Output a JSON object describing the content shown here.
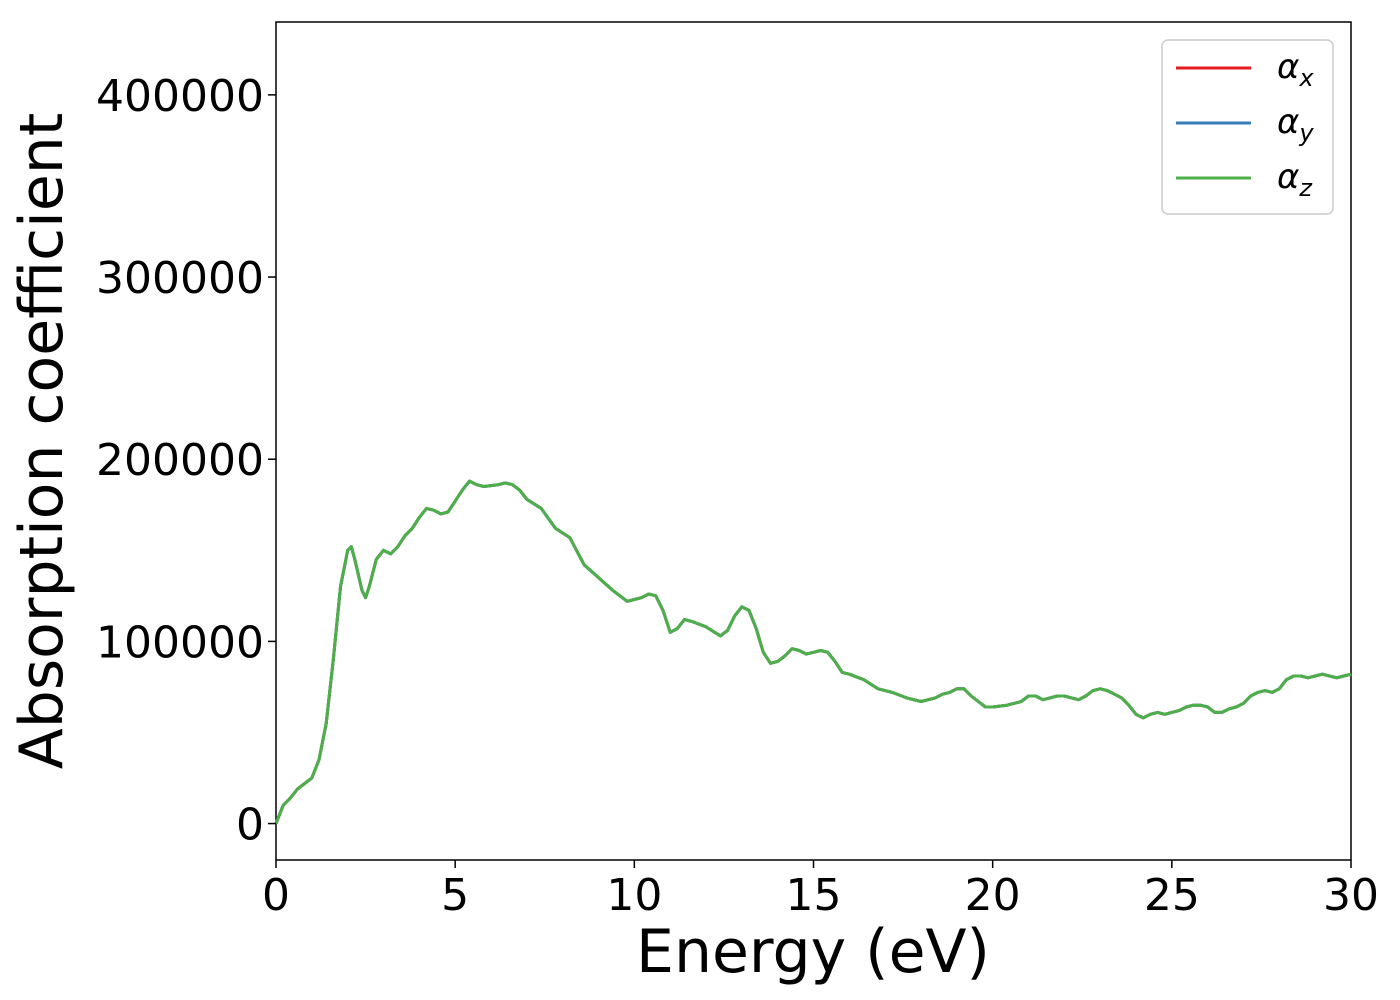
{
  "chart_data": {
    "type": "line",
    "xlabel": "Energy (eV)",
    "ylabel": "Absorption coefficient",
    "xlim": [
      0,
      30
    ],
    "ylim": [
      -20000,
      440000
    ],
    "xticks": [
      0,
      5,
      10,
      15,
      20,
      25,
      30
    ],
    "yticks": [
      0,
      100000,
      200000,
      300000,
      400000
    ],
    "xtick_labels": [
      "0",
      "5",
      "10",
      "15",
      "20",
      "25",
      "30"
    ],
    "ytick_labels": [
      "0",
      "100000",
      "200000",
      "300000",
      "400000"
    ],
    "grid": false,
    "legend_position": "top-right",
    "x": [
      0,
      0.2,
      0.4,
      0.6,
      0.8,
      1.0,
      1.2,
      1.4,
      1.6,
      1.8,
      2.0,
      2.1,
      2.2,
      2.4,
      2.5,
      2.6,
      2.8,
      3.0,
      3.2,
      3.4,
      3.6,
      3.8,
      4.0,
      4.2,
      4.4,
      4.6,
      4.8,
      5.0,
      5.2,
      5.4,
      5.6,
      5.8,
      6.0,
      6.2,
      6.4,
      6.6,
      6.8,
      7.0,
      7.4,
      7.8,
      8.2,
      8.6,
      9.0,
      9.4,
      9.8,
      10.0,
      10.2,
      10.4,
      10.6,
      10.8,
      11.0,
      11.2,
      11.4,
      11.6,
      12.0,
      12.4,
      12.6,
      12.8,
      13.0,
      13.2,
      13.4,
      13.6,
      13.8,
      14.0,
      14.2,
      14.4,
      14.6,
      14.8,
      15.0,
      15.2,
      15.4,
      15.6,
      15.8,
      16.0,
      16.4,
      16.8,
      17.2,
      17.6,
      18.0,
      18.4,
      18.6,
      18.8,
      19.0,
      19.2,
      19.4,
      19.6,
      19.8,
      20.0,
      20.4,
      20.8,
      21.0,
      21.2,
      21.4,
      21.6,
      21.8,
      22.0,
      22.2,
      22.4,
      22.6,
      22.8,
      23.0,
      23.2,
      23.4,
      23.6,
      23.8,
      24.0,
      24.2,
      24.4,
      24.6,
      24.8,
      25.0,
      25.2,
      25.4,
      25.6,
      25.8,
      26.0,
      26.2,
      26.4,
      26.6,
      26.8,
      27.0,
      27.2,
      27.4,
      27.6,
      27.8,
      28.0,
      28.2,
      28.4,
      28.6,
      28.8,
      29.0,
      29.2,
      29.4,
      29.6,
      29.8,
      30.0
    ],
    "series": [
      {
        "name": "α_x",
        "label_main": "α",
        "label_sub": "x",
        "color": "#e41a1c",
        "values": [
          0,
          10000,
          14000,
          19000,
          22000,
          25000,
          35000,
          55000,
          90000,
          130000,
          150000,
          152000,
          145000,
          128000,
          124000,
          130000,
          145000,
          150000,
          148000,
          152000,
          158000,
          162000,
          168000,
          173000,
          172000,
          170000,
          171000,
          177000,
          183000,
          188000,
          186000,
          185000,
          185500,
          186000,
          187000,
          186000,
          183000,
          178000,
          173000,
          162000,
          157000,
          142000,
          135000,
          128000,
          122000,
          123000,
          124000,
          126000,
          125000,
          117000,
          105000,
          107000,
          112000,
          111000,
          108000,
          103000,
          106000,
          114000,
          119000,
          117000,
          107000,
          94000,
          88000,
          89000,
          92000,
          96000,
          95000,
          93000,
          94000,
          95000,
          94000,
          89000,
          83000,
          82000,
          79000,
          74000,
          72000,
          69000,
          67000,
          69000,
          71000,
          72000,
          74000,
          74000,
          70000,
          67000,
          64000,
          64000,
          65000,
          67000,
          70000,
          70000,
          68000,
          69000,
          70000,
          70000,
          69000,
          68000,
          70000,
          73000,
          74000,
          73000,
          71000,
          69000,
          65000,
          60000,
          58000,
          60000,
          61000,
          60000,
          61000,
          62000,
          64000,
          65000,
          65000,
          64000,
          61000,
          61000,
          63000,
          64000,
          66000,
          70000,
          72000,
          73000,
          72000,
          74000,
          79000,
          81000,
          81000,
          80000,
          81000,
          82000,
          81000,
          80000,
          81000,
          82000
        ]
      },
      {
        "name": "α_y",
        "label_main": "α",
        "label_sub": "y",
        "color": "#377eb8",
        "values": [
          0,
          10000,
          14000,
          19000,
          22000,
          25000,
          35000,
          55000,
          90000,
          130000,
          150000,
          152000,
          145000,
          128000,
          124000,
          130000,
          145000,
          150000,
          148000,
          152000,
          158000,
          162000,
          168000,
          173000,
          172000,
          170000,
          171000,
          177000,
          183000,
          188000,
          186000,
          185000,
          185500,
          186000,
          187000,
          186000,
          183000,
          178000,
          173000,
          162000,
          157000,
          142000,
          135000,
          128000,
          122000,
          123000,
          124000,
          126000,
          125000,
          117000,
          105000,
          107000,
          112000,
          111000,
          108000,
          103000,
          106000,
          114000,
          119000,
          117000,
          107000,
          94000,
          88000,
          89000,
          92000,
          96000,
          95000,
          93000,
          94000,
          95000,
          94000,
          89000,
          83000,
          82000,
          79000,
          74000,
          72000,
          69000,
          67000,
          69000,
          71000,
          72000,
          74000,
          74000,
          70000,
          67000,
          64000,
          64000,
          65000,
          67000,
          70000,
          70000,
          68000,
          69000,
          70000,
          70000,
          69000,
          68000,
          70000,
          73000,
          74000,
          73000,
          71000,
          69000,
          65000,
          60000,
          58000,
          60000,
          61000,
          60000,
          61000,
          62000,
          64000,
          65000,
          65000,
          64000,
          61000,
          61000,
          63000,
          64000,
          66000,
          70000,
          72000,
          73000,
          72000,
          74000,
          79000,
          81000,
          81000,
          80000,
          81000,
          82000,
          81000,
          80000,
          81000,
          82000
        ]
      },
      {
        "name": "α_z",
        "label_main": "α",
        "label_sub": "z",
        "color": "#4daf4a",
        "values": [
          0,
          10000,
          14000,
          19000,
          22000,
          25000,
          35000,
          55000,
          90000,
          130000,
          150000,
          152000,
          145000,
          128000,
          124000,
          130000,
          145000,
          150000,
          148000,
          152000,
          158000,
          162000,
          168000,
          173000,
          172000,
          170000,
          171000,
          177000,
          183000,
          188000,
          186000,
          185000,
          185500,
          186000,
          187000,
          186000,
          183000,
          178000,
          173000,
          162000,
          157000,
          142000,
          135000,
          128000,
          122000,
          123000,
          124000,
          126000,
          125000,
          117000,
          105000,
          107000,
          112000,
          111000,
          108000,
          103000,
          106000,
          114000,
          119000,
          117000,
          107000,
          94000,
          88000,
          89000,
          92000,
          96000,
          95000,
          93000,
          94000,
          95000,
          94000,
          89000,
          83000,
          82000,
          79000,
          74000,
          72000,
          69000,
          67000,
          69000,
          71000,
          72000,
          74000,
          74000,
          70000,
          67000,
          64000,
          64000,
          65000,
          67000,
          70000,
          70000,
          68000,
          69000,
          70000,
          70000,
          69000,
          68000,
          70000,
          73000,
          74000,
          73000,
          71000,
          69000,
          65000,
          60000,
          58000,
          60000,
          61000,
          60000,
          61000,
          62000,
          64000,
          65000,
          65000,
          64000,
          61000,
          61000,
          63000,
          64000,
          66000,
          70000,
          72000,
          73000,
          72000,
          74000,
          79000,
          81000,
          81000,
          80000,
          81000,
          82000,
          81000,
          80000,
          81000,
          82000
        ]
      }
    ]
  }
}
